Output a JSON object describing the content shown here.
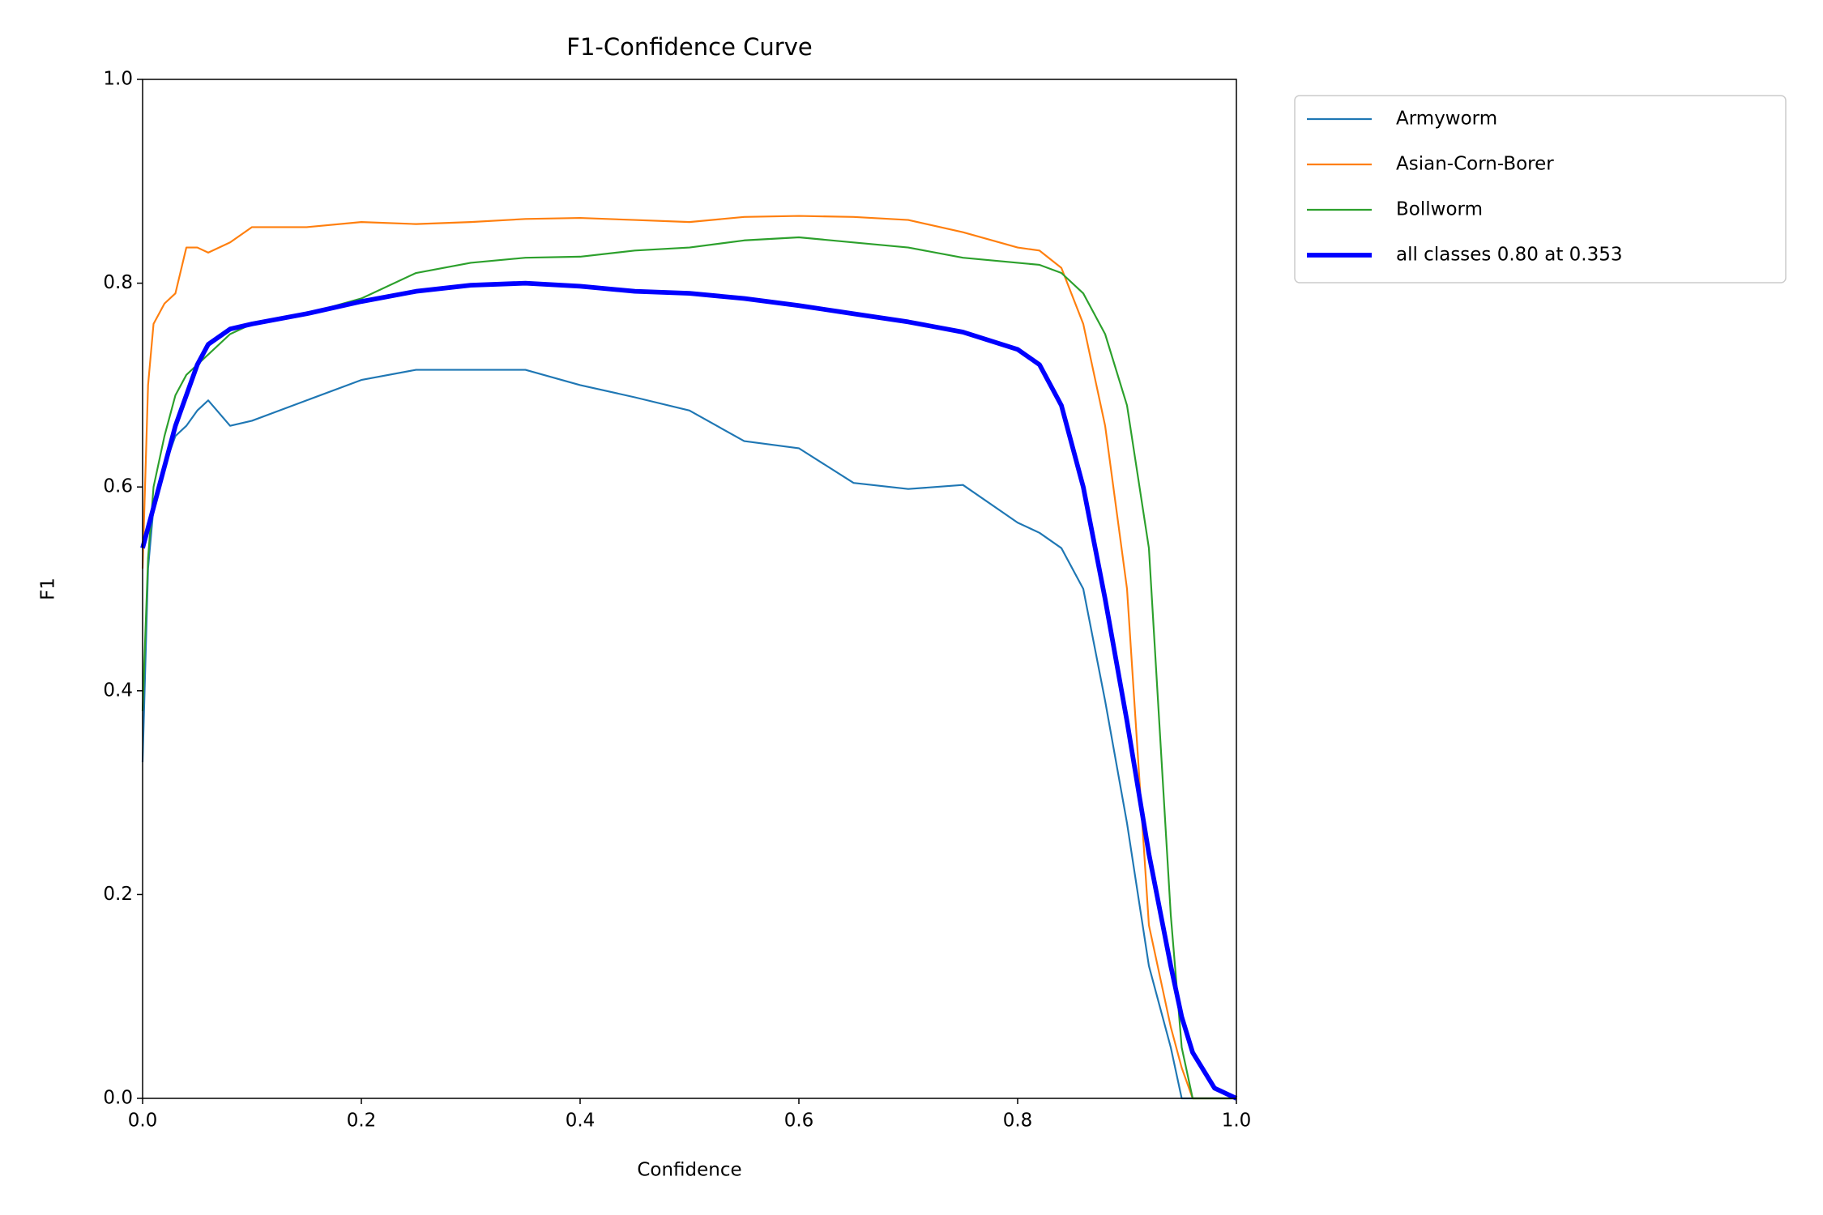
{
  "chart_data": {
    "type": "line",
    "title": "F1-Confidence Curve",
    "x_label": "Confidence",
    "y_label": "F1",
    "x": [
      0,
      0.005,
      0.01,
      0.02,
      0.03,
      0.04,
      0.05,
      0.06,
      0.08,
      0.1,
      0.15,
      0.2,
      0.25,
      0.3,
      0.35,
      0.4,
      0.45,
      0.5,
      0.55,
      0.6,
      0.65,
      0.7,
      0.75,
      0.8,
      0.82,
      0.84,
      0.86,
      0.88,
      0.9,
      0.92,
      0.94,
      0.95,
      0.96,
      0.98,
      1.0
    ],
    "series": [
      {
        "name": "Armyworm",
        "color": "#1f77b4",
        "width": 1.5,
        "values": [
          0.33,
          0.52,
          0.58,
          0.62,
          0.65,
          0.66,
          0.675,
          0.685,
          0.66,
          0.665,
          0.685,
          0.705,
          0.715,
          0.715,
          0.715,
          0.7,
          0.688,
          0.675,
          0.645,
          0.638,
          0.604,
          0.598,
          0.602,
          0.565,
          0.555,
          0.54,
          0.5,
          0.39,
          0.27,
          0.13,
          0.05,
          0,
          0,
          0,
          0
        ]
      },
      {
        "name": "Asian-Corn-Borer",
        "color": "#ff7f0e",
        "width": 1.5,
        "values": [
          0.52,
          0.7,
          0.76,
          0.78,
          0.79,
          0.835,
          0.835,
          0.83,
          0.84,
          0.855,
          0.855,
          0.86,
          0.858,
          0.86,
          0.863,
          0.864,
          0.862,
          0.86,
          0.865,
          0.866,
          0.865,
          0.862,
          0.85,
          0.835,
          0.832,
          0.815,
          0.76,
          0.66,
          0.5,
          0.17,
          0.07,
          0.03,
          0,
          0,
          0
        ]
      },
      {
        "name": "Bollworm",
        "color": "#2ca02c",
        "width": 1.5,
        "values": [
          0.38,
          0.53,
          0.6,
          0.65,
          0.69,
          0.71,
          0.72,
          0.73,
          0.75,
          0.76,
          0.77,
          0.785,
          0.81,
          0.82,
          0.825,
          0.826,
          0.832,
          0.835,
          0.842,
          0.845,
          0.84,
          0.835,
          0.825,
          0.82,
          0.818,
          0.81,
          0.79,
          0.75,
          0.68,
          0.54,
          0.18,
          0.05,
          0,
          0,
          0
        ]
      },
      {
        "name": "all classes 0.80 at 0.353",
        "color": "#0000ff",
        "width": 4,
        "values": [
          0.54,
          0.56,
          0.58,
          0.62,
          0.66,
          0.69,
          0.72,
          0.74,
          0.755,
          0.76,
          0.77,
          0.782,
          0.792,
          0.798,
          0.8,
          0.797,
          0.792,
          0.79,
          0.785,
          0.778,
          0.77,
          0.762,
          0.752,
          0.735,
          0.72,
          0.68,
          0.6,
          0.49,
          0.37,
          0.24,
          0.13,
          0.08,
          0.045,
          0.01,
          0
        ]
      }
    ],
    "xlim": [
      0,
      1
    ],
    "ylim": [
      0,
      1
    ],
    "xticks": [
      {
        "value": 0,
        "label": "0.0"
      },
      0.2,
      0.4,
      0.6,
      0.8,
      {
        "value": 1,
        "label": "1.0"
      }
    ],
    "yticks": [
      {
        "value": 0,
        "label": "0.0"
      },
      0.2,
      0.4,
      0.6,
      0.8,
      {
        "value": 1,
        "label": "1.0"
      }
    ],
    "legend": "outside-upper-right"
  }
}
